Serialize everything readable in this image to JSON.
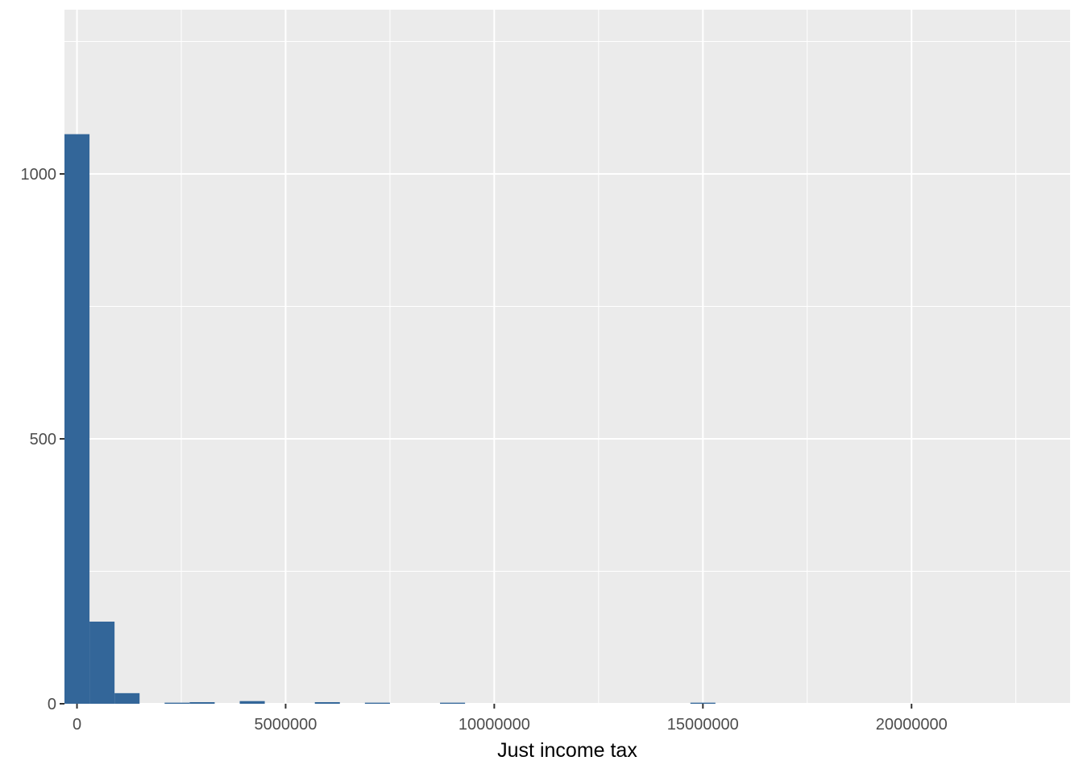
{
  "chart_data": {
    "type": "bar",
    "subtype": "histogram",
    "title": "",
    "xlabel": "Just income tax",
    "ylabel": "",
    "xlim": [
      -300000,
      23800000
    ],
    "ylim": [
      0,
      1310
    ],
    "bin_width": 600000,
    "x_ticks": [
      {
        "value": 0,
        "label": "0"
      },
      {
        "value": 5000000,
        "label": "5000000"
      },
      {
        "value": 10000000,
        "label": "10000000"
      },
      {
        "value": 15000000,
        "label": "15000000"
      },
      {
        "value": 20000000,
        "label": "20000000"
      }
    ],
    "y_ticks": [
      {
        "value": 0,
        "label": "0"
      },
      {
        "value": 500,
        "label": "500"
      },
      {
        "value": 1000,
        "label": "1000"
      }
    ],
    "x_minor_ticks": [
      2500000,
      7500000,
      12500000,
      17500000,
      22500000
    ],
    "y_minor_ticks": [
      250,
      750,
      1250
    ],
    "bins": [
      {
        "x0": -300000,
        "x1": 300000,
        "count": 1075
      },
      {
        "x0": 300000,
        "x1": 900000,
        "count": 155
      },
      {
        "x0": 900000,
        "x1": 1500000,
        "count": 20
      },
      {
        "x0": 2100000,
        "x1": 2700000,
        "count": 2
      },
      {
        "x0": 2700000,
        "x1": 3300000,
        "count": 3
      },
      {
        "x0": 3900000,
        "x1": 4500000,
        "count": 5
      },
      {
        "x0": 5700000,
        "x1": 6300000,
        "count": 3
      },
      {
        "x0": 6900000,
        "x1": 7500000,
        "count": 2
      },
      {
        "x0": 8700000,
        "x1": 9300000,
        "count": 2
      },
      {
        "x0": 14700000,
        "x1": 15300000,
        "count": 2
      }
    ],
    "grid": true,
    "panel_background": "#ebebeb",
    "grid_color": "#ffffff",
    "bar_color": "#336699"
  }
}
